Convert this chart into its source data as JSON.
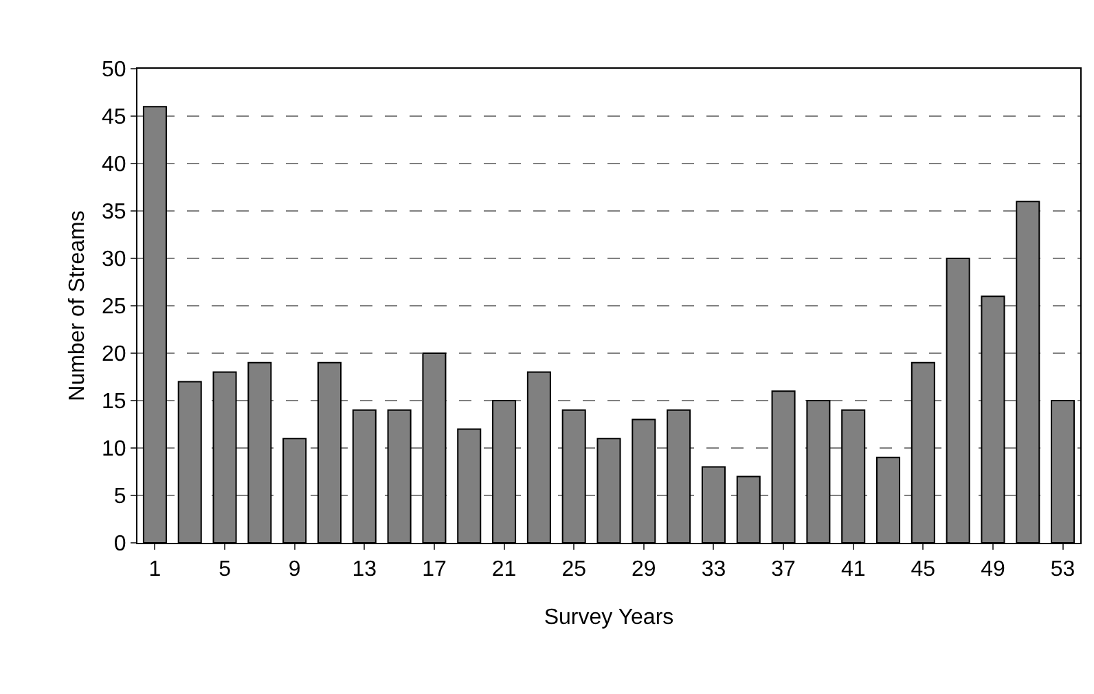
{
  "chart_data": {
    "type": "bar",
    "xlabel": "Survey Years",
    "ylabel": "Number of Streams",
    "categories": [
      "1",
      null,
      "5",
      null,
      "9",
      null,
      "13",
      null,
      "17",
      null,
      "21",
      null,
      "25",
      null,
      "29",
      null,
      "33",
      null,
      "37",
      null,
      "41",
      null,
      "45",
      null,
      "49",
      null,
      "53"
    ],
    "values": [
      46,
      17,
      18,
      19,
      11,
      19,
      14,
      14,
      20,
      12,
      15,
      18,
      14,
      11,
      13,
      14,
      8,
      7,
      16,
      15,
      14,
      9,
      19,
      30,
      26,
      36,
      15
    ],
    "color": "#808080",
    "ylim": [
      0,
      50
    ],
    "yticks": [
      0,
      5,
      10,
      15,
      20,
      25,
      30,
      35,
      40,
      45,
      50
    ],
    "grid": "y"
  }
}
